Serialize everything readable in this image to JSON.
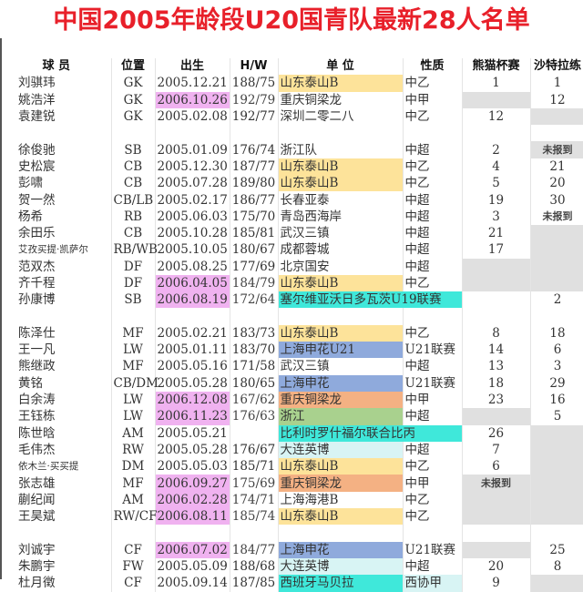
{
  "title": "中国2005年龄段U20国青队最新28人名单",
  "headers": [
    "球  员",
    "位置",
    "出生",
    "H/W",
    "单  位",
    "性质",
    "熊猫杯赛",
    "沙特拉练"
  ],
  "colors": {
    "title": "#e8202a",
    "yellow": "#fde39a",
    "purple": "#f0b2f0",
    "blue": "#8faadc",
    "orange": "#f4b183",
    "green": "#a9d18e",
    "cyan": "#3fe8da",
    "lightcyan": "#d8f4f4",
    "gray": "#e0e0e0"
  },
  "rows": [
    {
      "name": "刘骐玮",
      "pos": "GK",
      "birth": "2005.12.21",
      "hw": "188/75",
      "unit": "山东泰山B",
      "unit_color": "yellow",
      "nature": "中乙",
      "panda": "1",
      "saudi": "1"
    },
    {
      "name": "姚浩洋",
      "pos": "GK",
      "birth": "2006.10.26",
      "birth_color": "purple",
      "hw": "192/79",
      "unit": "重庆铜梁龙",
      "nature": "中甲",
      "panda": "",
      "panda_gray": true,
      "saudi": "12"
    },
    {
      "name": "袁建锐",
      "pos": "GK",
      "birth": "2005.02.08",
      "hw": "192/77",
      "unit": "深圳二零二八",
      "nature": "中乙",
      "panda": "12",
      "saudi": "",
      "saudi_gray": true
    },
    {
      "blank": true
    },
    {
      "name": "徐俊驰",
      "pos": "SB",
      "birth": "2005.01.09",
      "hw": "176/74",
      "unit": "浙江队",
      "nature": "中超",
      "panda": "2",
      "saudi": "未报到",
      "saudi_gray": true
    },
    {
      "name": "史松宸",
      "pos": "CB",
      "birth": "2005.12.30",
      "hw": "187/77",
      "unit": "山东泰山B",
      "unit_color": "yellow",
      "nature": "中乙",
      "panda": "4",
      "saudi": "21"
    },
    {
      "name": "彭啸",
      "pos": "CB",
      "birth": "2005.07.28",
      "hw": "189/80",
      "unit": "山东泰山B",
      "unit_color": "yellow",
      "nature": "中乙",
      "panda": "5",
      "saudi": "20"
    },
    {
      "name": "贺一然",
      "pos": "CB/LB",
      "birth": "2005.02.17",
      "hw": "186/77",
      "unit": "长春亚泰",
      "nature": "中超",
      "panda": "19",
      "saudi": "30"
    },
    {
      "name": "杨希",
      "pos": "RB",
      "birth": "2005.06.03",
      "hw": "175/70",
      "unit": "青岛西海岸",
      "nature": "中超",
      "panda": "3",
      "saudi": "未报到"
    },
    {
      "name": "余田乐",
      "pos": "CB",
      "birth": "2005.10.28",
      "hw": "185/81",
      "unit": "武汉三镇",
      "nature": "中超",
      "panda": "21",
      "saudi": "",
      "saudi_gray": true
    },
    {
      "name": "艾孜买提·凯萨尔",
      "small": true,
      "pos": "RB/WB",
      "birth": "2005.10.05",
      "hw": "180/67",
      "unit": "成都蓉城",
      "nature": "中超",
      "panda": "17",
      "saudi": "",
      "saudi_gray": true
    },
    {
      "name": "范双杰",
      "pos": "DF",
      "birth": "2005.08.25",
      "hw": "177/69",
      "unit": "北京国安",
      "nature": "中超",
      "panda": "",
      "panda_gray": true,
      "saudi": "",
      "saudi_gray": true
    },
    {
      "name": "齐千程",
      "pos": "DF",
      "birth": "2006.04.05",
      "birth_color": "purple",
      "hw": "184/79",
      "unit": "山东泰山B",
      "unit_color": "yellow",
      "nature": "中乙",
      "panda": "",
      "panda_gray": true,
      "saudi": "",
      "saudi_gray": true
    },
    {
      "name": "孙康博",
      "pos": "SB",
      "birth": "2006.08.19",
      "birth_color": "purple",
      "hw": "172/64",
      "unit": "塞尔维亚沃日多瓦茨U19联赛",
      "unit_color": "cyan",
      "span": true,
      "nature": "",
      "panda": "",
      "saudi": "2"
    },
    {
      "blank": true
    },
    {
      "name": "陈泽仕",
      "pos": "MF",
      "birth": "2005.02.21",
      "hw": "183/73",
      "unit": "山东泰山B",
      "unit_color": "yellow",
      "nature": "中乙",
      "panda": "8",
      "saudi": "18"
    },
    {
      "name": "王一凡",
      "pos": "LW",
      "birth": "2005.01.11",
      "hw": "183/70",
      "unit": "上海申花U21",
      "unit_color": "blue",
      "nature": "U21联赛",
      "panda": "14",
      "saudi": "6"
    },
    {
      "name": "熊继政",
      "pos": "MF",
      "birth": "2005.05.16",
      "hw": "171/58",
      "unit": "武汉三镇",
      "nature": "中超",
      "panda": "13",
      "saudi": "3"
    },
    {
      "name": "黄铭",
      "pos": "CB/DM",
      "birth": "2005.05.28",
      "hw": "180/65",
      "unit": "上海申花",
      "unit_color": "blue",
      "nature": "U21联赛",
      "panda": "18",
      "saudi": "29"
    },
    {
      "name": "白余涛",
      "pos": "LW",
      "birth": "2006.12.08",
      "birth_color": "purple",
      "hw": "167/62",
      "unit": "重庆铜梁龙",
      "unit_color": "orange",
      "nature": "中甲",
      "panda": "23",
      "saudi": "16"
    },
    {
      "name": "王钰栋",
      "pos": "LW",
      "birth": "2006.11.23",
      "birth_color": "purple",
      "hw": "176/63",
      "unit": "浙江",
      "unit_color": "green",
      "nature": "中超",
      "panda": "",
      "panda_gray": true,
      "saudi": "5"
    },
    {
      "name": "陈世晗",
      "pos": "AM",
      "birth": "2005.05.21",
      "hw": "",
      "unit": "比利时罗什福尔联合比丙",
      "unit_color": "cyan",
      "span": true,
      "nature": "",
      "panda": "26",
      "saudi": "",
      "saudi_gray": true
    },
    {
      "name": "毛伟杰",
      "pos": "RW",
      "birth": "2005.05.28",
      "hw": "176/67",
      "unit": "大连英博",
      "unit_color": "lightcyan",
      "nature": "中超",
      "panda": "7",
      "saudi": "",
      "saudi_gray": true
    },
    {
      "name": "依木兰·买买提",
      "small": true,
      "pos": "DM",
      "birth": "2005.05.03",
      "hw": "185/71",
      "unit": "山东泰山B",
      "unit_color": "yellow",
      "nature": "中乙",
      "panda": "6",
      "saudi": "",
      "saudi_gray": true
    },
    {
      "name": "张志雄",
      "pos": "MF",
      "birth": "2006.09.27",
      "birth_color": "purple",
      "hw": "175/69",
      "unit": "重庆铜梁龙",
      "unit_color": "orange",
      "nature": "中甲",
      "panda": "未报到",
      "panda_gray": true,
      "saudi": "",
      "saudi_gray": true
    },
    {
      "name": "蒯纪闻",
      "pos": "AM",
      "birth": "2006.02.28",
      "birth_color": "purple",
      "hw": "174/71",
      "unit": "上海海港B",
      "nature": "中乙",
      "panda": "",
      "panda_gray": true,
      "saudi": "",
      "saudi_gray": true
    },
    {
      "name": "王昊斌",
      "pos": "RW/CF",
      "birth": "2006.08.11",
      "birth_color": "purple",
      "hw": "185/74",
      "unit": "山东泰山B",
      "unit_color": "yellow",
      "nature": "中乙",
      "panda": "",
      "panda_gray": true,
      "saudi": "",
      "saudi_gray": true
    },
    {
      "blank": true
    },
    {
      "name": "刘诚宇",
      "pos": "CF",
      "birth": "2006.07.02",
      "birth_color": "purple",
      "hw": "184/77",
      "unit": "上海申花",
      "unit_color": "blue",
      "nature": "U21联赛",
      "panda": "",
      "panda_gray": true,
      "saudi": "25"
    },
    {
      "name": "朱鹏宇",
      "pos": "FW",
      "birth": "2005.05.09",
      "hw": "188/68",
      "unit": "大连英博",
      "unit_color": "lightcyan",
      "nature": "中超",
      "panda": "20",
      "saudi": "8"
    },
    {
      "name": "杜月徵",
      "pos": "CF",
      "birth": "2005.09.14",
      "hw": "187/85",
      "unit": "西班牙马贝拉",
      "unit_color": "cyan",
      "nature": "西协甲",
      "nature_color": "lightcyan",
      "panda": "9",
      "saudi": "",
      "saudi_gray": true
    }
  ]
}
